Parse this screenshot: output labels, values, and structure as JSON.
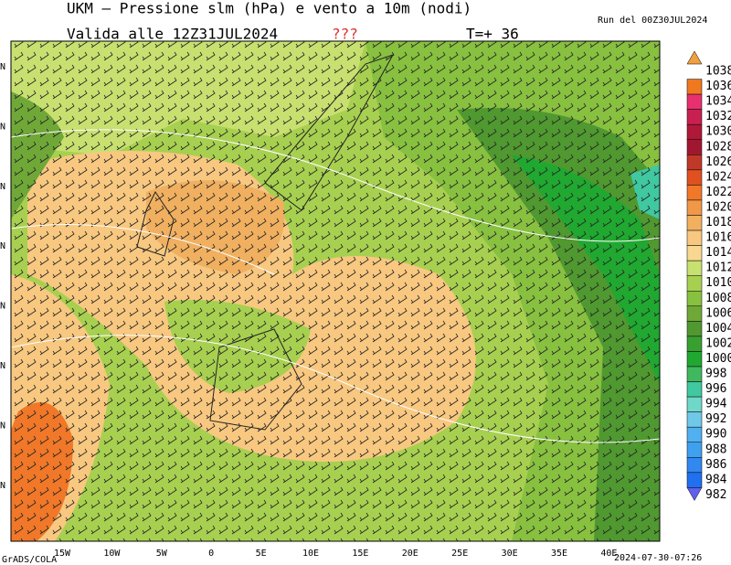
{
  "header": {
    "title": "UKM – Pressione slm (hPa) e vento a 10m (nodi)",
    "run": "Run del 00Z30JUL2024",
    "valid": "Valida alle 12Z31JUL2024",
    "flag": "???",
    "step": "T=+ 36"
  },
  "map": {
    "lon_labels": [
      "15W",
      "10W",
      "5W",
      "0",
      "5E",
      "10E",
      "15E",
      "20E",
      "25E",
      "30E",
      "35E",
      "40E"
    ],
    "lat_labels": [
      "N",
      "N",
      "N",
      "N",
      "N",
      "N",
      "N",
      "N"
    ]
  },
  "colorbar": {
    "labels": [
      1038,
      1036,
      1034,
      1032,
      1030,
      1028,
      1026,
      1024,
      1022,
      1020,
      1018,
      1016,
      1014,
      1012,
      1010,
      1008,
      1006,
      1004,
      1002,
      1000,
      998,
      996,
      994,
      992,
      990,
      988,
      986,
      984,
      982
    ],
    "colors": [
      "#f0a040",
      "#f07820",
      "#e83070",
      "#c82050",
      "#b01838",
      "#a01830",
      "#c03828",
      "#e05020",
      "#f07828",
      "#f09848",
      "#f0b060",
      "#f8c880",
      "#f8d890",
      "#c8e070",
      "#a8d050",
      "#88c040",
      "#70a838",
      "#509830",
      "#38a030",
      "#20a830",
      "#40b860",
      "#40c8a0",
      "#70d8c8",
      "#70c8e8",
      "#50b0f0",
      "#40a0f0",
      "#3088f0",
      "#2070f0",
      "#6060f0"
    ]
  },
  "footer": {
    "left": "GrADS/COLA",
    "right": "2024-07-30-07:26"
  }
}
